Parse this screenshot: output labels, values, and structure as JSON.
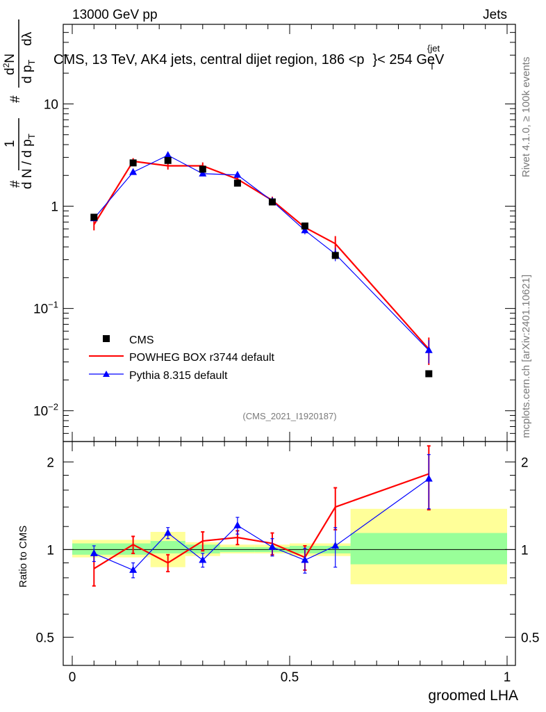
{
  "header": {
    "left": "13000 GeV pp",
    "right": "Jets"
  },
  "title": "CMS, 13 TeV, AK4 jets, central dijet region, 186 <p",
  "title_sup": "{jet",
  "title_sub": "T",
  "title_end": "}< 254 GeV",
  "side_text_top": "Rivet 4.1.0, ≥ 100k events",
  "side_text_bottom": "mcplots.cern.ch [arXiv:2401.10621]",
  "analysis_id": "(CMS_2021_I1920187)",
  "ylabel_main": "1 / dN/dp_T · d²N / dp_T dλ",
  "ylabel_main_parts": {
    "hash1": "#",
    "one": "1",
    "frac_bottom": "d N / d p",
    "frac_bottom_sub": "T",
    "hash2": "#",
    "num_top": "d",
    "num_sup": "2",
    "num_N": "N",
    "den": "d p",
    "den_sub": "T",
    "dlambda": "dλ"
  },
  "ylabel_ratio": "Ratio to CMS",
  "xlabel": "groomed LHA",
  "colors": {
    "cms": "#000000",
    "powheg": "#ff0000",
    "pythia": "#0000ff",
    "band_inner": "#99ff99",
    "band_outer": "#ffff99"
  },
  "chart_data": [
    {
      "type": "line",
      "panel": "main",
      "yscale": "log",
      "ylim": [
        0.005,
        60
      ],
      "xlim": [
        0,
        1
      ],
      "yticks": [
        {
          "value": 0.01,
          "base": "10",
          "exp": "−2"
        },
        {
          "value": 0.1,
          "base": "10",
          "exp": "−1"
        },
        {
          "value": 1,
          "label": "1"
        },
        {
          "value": 10,
          "label": "10"
        }
      ],
      "x": [
        0.05,
        0.14,
        0.22,
        0.3,
        0.38,
        0.46,
        0.535,
        0.605,
        0.82
      ],
      "series": [
        {
          "name": "CMS",
          "style": "markers-square",
          "values": [
            0.78,
            2.65,
            2.8,
            2.3,
            1.68,
            1.1,
            0.64,
            0.33,
            0.023
          ],
          "errors": [
            0.03,
            0.05,
            0.05,
            0.05,
            0.04,
            0.03,
            0.02,
            0.01,
            0.001
          ]
        },
        {
          "name": "POWHEG BOX r3744 default",
          "style": "line",
          "values": [
            0.66,
            2.75,
            2.48,
            2.48,
            1.84,
            1.14,
            0.62,
            0.43,
            0.04
          ],
          "errors": [
            0.08,
            0.2,
            0.2,
            0.2,
            0.15,
            0.1,
            0.06,
            0.08,
            0.012
          ]
        },
        {
          "name": "Pythia 8.315 default",
          "style": "line-triangle",
          "values": [
            0.76,
            2.15,
            3.15,
            2.08,
            2.02,
            1.12,
            0.58,
            0.34,
            0.039
          ],
          "errors": [
            0.05,
            0.1,
            0.15,
            0.1,
            0.12,
            0.07,
            0.05,
            0.05,
            0.01
          ]
        }
      ],
      "legend": "bottom-left"
    },
    {
      "type": "line",
      "panel": "ratio",
      "yscale": "log",
      "ylim": [
        0.4,
        2.35
      ],
      "xlim": [
        0,
        1
      ],
      "yticks": [
        {
          "value": 0.5,
          "label": "0.5"
        },
        {
          "value": 1,
          "label": "1"
        },
        {
          "value": 2,
          "label": "2"
        }
      ],
      "xticks": [
        {
          "value": 0,
          "label": "0"
        },
        {
          "value": 0.5,
          "label": "0.5"
        },
        {
          "value": 1,
          "label": "1"
        }
      ],
      "x": [
        0.05,
        0.14,
        0.22,
        0.3,
        0.38,
        0.46,
        0.535,
        0.605,
        0.82
      ],
      "bands": [
        {
          "x0": 0.0,
          "x1": 0.18,
          "inner": [
            0.96,
            1.05
          ],
          "outer": [
            0.94,
            1.08
          ]
        },
        {
          "x0": 0.18,
          "x1": 0.26,
          "inner": [
            0.97,
            1.07
          ],
          "outer": [
            0.87,
            1.15
          ]
        },
        {
          "x0": 0.26,
          "x1": 0.34,
          "inner": [
            0.97,
            1.04
          ],
          "outer": [
            0.95,
            1.06
          ]
        },
        {
          "x0": 0.34,
          "x1": 0.42,
          "inner": [
            0.98,
            1.02
          ],
          "outer": [
            0.97,
            1.04
          ]
        },
        {
          "x0": 0.42,
          "x1": 0.5,
          "inner": [
            0.98,
            1.02
          ],
          "outer": [
            0.97,
            1.04
          ]
        },
        {
          "x0": 0.5,
          "x1": 0.64,
          "inner": [
            0.97,
            1.03
          ],
          "outer": [
            0.95,
            1.05
          ]
        },
        {
          "x0": 0.64,
          "x1": 1.0,
          "inner": [
            0.89,
            1.14
          ],
          "outer": [
            0.76,
            1.38
          ]
        }
      ],
      "series": [
        {
          "name": "POWHEG BOX r3744 default",
          "values": [
            0.86,
            1.04,
            0.9,
            1.07,
            1.1,
            1.05,
            0.94,
            1.4,
            1.82
          ],
          "errors": [
            0.11,
            0.07,
            0.06,
            0.08,
            0.06,
            0.09,
            0.09,
            0.23,
            0.45
          ]
        },
        {
          "name": "Pythia 8.315 default",
          "values": [
            0.97,
            0.85,
            1.14,
            0.92,
            1.21,
            1.02,
            0.92,
            1.03,
            1.75
          ],
          "errors": [
            0.06,
            0.05,
            0.05,
            0.05,
            0.08,
            0.07,
            0.09,
            0.16,
            0.37
          ]
        }
      ]
    }
  ]
}
